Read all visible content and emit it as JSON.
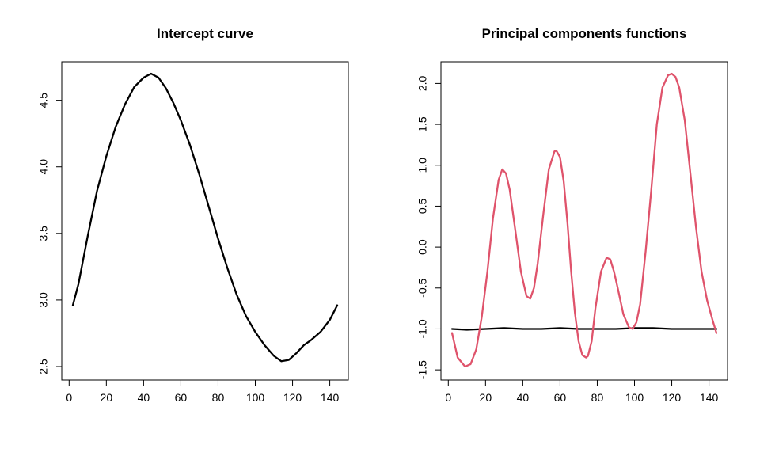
{
  "chart_data": [
    {
      "type": "line",
      "title": "Intercept curve",
      "xlabel": "",
      "ylabel": "",
      "xlim": [
        2,
        144
      ],
      "ylim": [
        2.5,
        4.7
      ],
      "x_ticks": [
        "0",
        "20",
        "40",
        "60",
        "80",
        "100",
        "120",
        "140"
      ],
      "y_ticks": [
        "2.5",
        "3.0",
        "3.5",
        "4.0",
        "4.5"
      ],
      "colors": {
        "line": "#000000"
      },
      "series": [
        {
          "x": [
            2,
            5,
            10,
            15,
            20,
            25,
            30,
            35,
            40,
            44,
            48,
            52,
            56,
            60,
            65,
            70,
            75,
            80,
            85,
            90,
            95,
            100,
            105,
            110,
            114,
            118,
            122,
            126,
            130,
            135,
            140,
            144
          ],
          "values": [
            2.96,
            3.12,
            3.48,
            3.82,
            4.08,
            4.3,
            4.47,
            4.6,
            4.67,
            4.7,
            4.67,
            4.59,
            4.48,
            4.35,
            4.16,
            3.94,
            3.7,
            3.46,
            3.24,
            3.04,
            2.88,
            2.76,
            2.66,
            2.58,
            2.54,
            2.55,
            2.6,
            2.66,
            2.7,
            2.76,
            2.85,
            2.96
          ]
        }
      ]
    },
    {
      "type": "line",
      "title": "Principal components functions",
      "xlabel": "",
      "ylabel": "",
      "xlim": [
        2,
        144
      ],
      "ylim": [
        -1.46,
        2.12
      ],
      "x_ticks": [
        "0",
        "20",
        "40",
        "60",
        "80",
        "100",
        "120",
        "140"
      ],
      "y_ticks": [
        "-1.5",
        "-1.0",
        "-0.5",
        "0.0",
        "0.5",
        "1.0",
        "1.5",
        "2.0"
      ],
      "colors": {
        "series_1": "#000000",
        "series_2": "#DF536B"
      },
      "series": [
        {
          "x": [
            2,
            10,
            20,
            30,
            40,
            50,
            60,
            70,
            80,
            90,
            100,
            110,
            120,
            130,
            144
          ],
          "values": [
            -1.0,
            -1.01,
            -1.0,
            -0.99,
            -1.0,
            -1.0,
            -0.99,
            -1.0,
            -1.0,
            -1.0,
            -0.99,
            -0.99,
            -1.0,
            -1.0,
            -1.0
          ]
        },
        {
          "x": [
            2,
            5,
            9,
            12,
            15,
            18,
            21,
            24,
            27,
            29,
            31,
            33,
            36,
            39,
            42,
            44,
            46,
            48,
            51,
            54,
            57,
            58,
            60,
            62,
            64,
            66,
            68,
            70,
            72,
            74,
            75,
            77,
            79,
            82,
            85,
            87,
            89,
            91,
            94,
            97,
            99,
            101,
            103,
            106,
            109,
            112,
            115,
            118,
            120,
            122,
            124,
            127,
            130,
            133,
            136,
            139,
            142,
            144
          ],
          "values": [
            -1.05,
            -1.35,
            -1.46,
            -1.43,
            -1.25,
            -0.85,
            -0.3,
            0.35,
            0.82,
            0.95,
            0.9,
            0.7,
            0.2,
            -0.3,
            -0.6,
            -0.63,
            -0.5,
            -0.2,
            0.4,
            0.95,
            1.17,
            1.18,
            1.1,
            0.8,
            0.3,
            -0.3,
            -0.8,
            -1.15,
            -1.32,
            -1.35,
            -1.33,
            -1.15,
            -0.75,
            -0.3,
            -0.13,
            -0.15,
            -0.3,
            -0.5,
            -0.82,
            -0.98,
            -1.0,
            -0.92,
            -0.7,
            -0.05,
            0.7,
            1.5,
            1.95,
            2.1,
            2.12,
            2.08,
            1.95,
            1.55,
            0.9,
            0.25,
            -0.3,
            -0.65,
            -0.9,
            -1.05
          ]
        }
      ]
    }
  ]
}
